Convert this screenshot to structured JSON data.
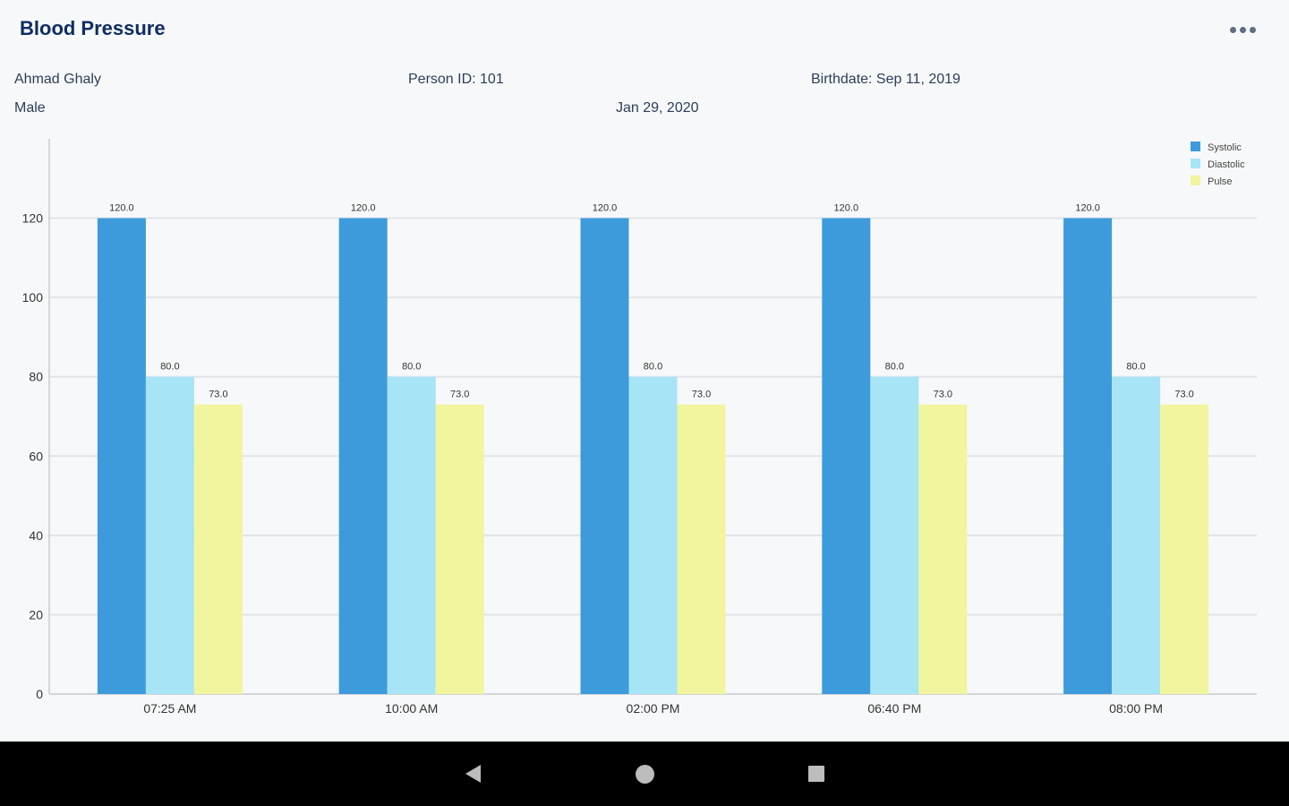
{
  "header": {
    "title": "Blood Pressure",
    "menu_icon": "more-horizontal-icon"
  },
  "patient": {
    "name": "Ahmad Ghaly",
    "person_id": "Person ID: 101",
    "birthdate": "Birthdate: Sep 11, 2019",
    "gender": "Male",
    "date": "Jan 29, 2020"
  },
  "chart_data": {
    "type": "bar",
    "categories": [
      "07:25 AM",
      "10:00 AM",
      "02:00 PM",
      "06:40 PM",
      "08:00 PM"
    ],
    "series": [
      {
        "name": "Systolic",
        "color": "#3d9bdb",
        "values": [
          120.0,
          120.0,
          120.0,
          120.0,
          120.0
        ]
      },
      {
        "name": "Diastolic",
        "color": "#a6e4f6",
        "values": [
          80.0,
          80.0,
          80.0,
          80.0,
          80.0
        ]
      },
      {
        "name": "Pulse",
        "color": "#f0f59e",
        "values": [
          73.0,
          73.0,
          73.0,
          73.0,
          73.0
        ]
      }
    ],
    "ylim": [
      0,
      140
    ],
    "yticks": [
      0,
      20,
      40,
      60,
      80,
      100,
      120
    ],
    "grid": true,
    "legend_position": "top-right",
    "data_labels": true
  },
  "navbar": {
    "back_icon": "back-triangle-icon",
    "home_icon": "home-circle-icon",
    "recents_icon": "recents-square-icon"
  }
}
